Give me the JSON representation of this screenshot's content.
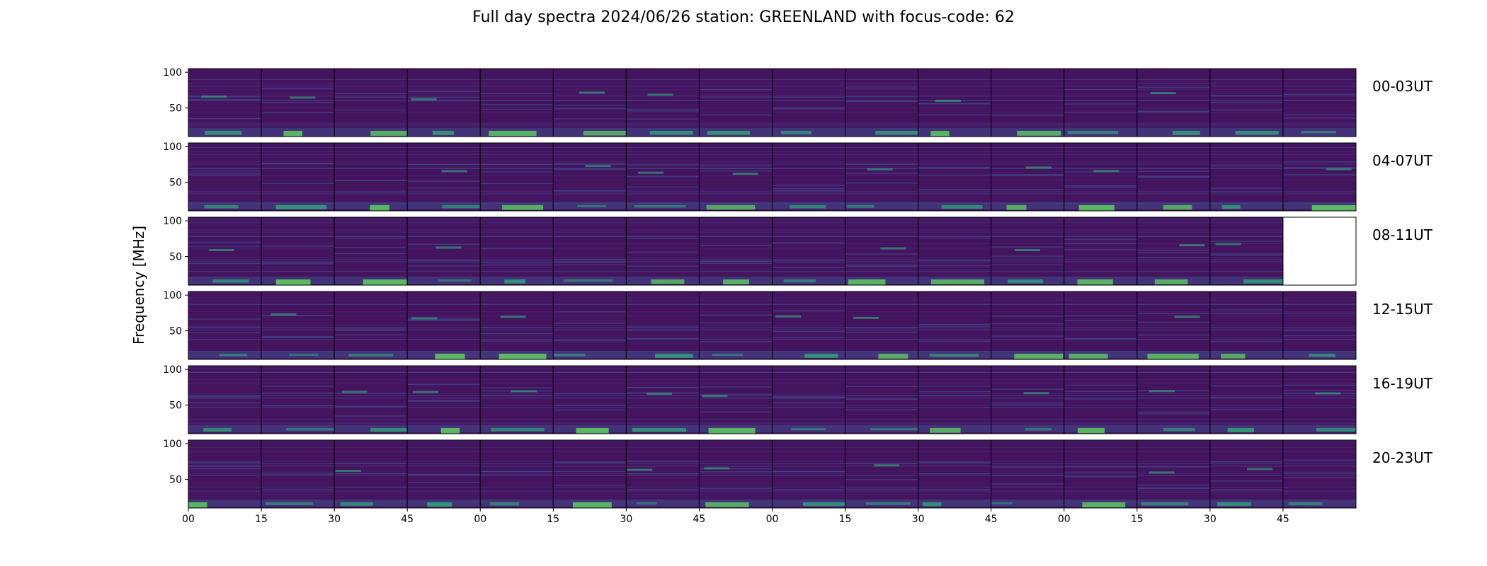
{
  "figure": {
    "title": "Full day spectra 2024/06/26 station: GREENLAND with focus-code: 62"
  },
  "chart_data": {
    "type": "heatmap",
    "title": "Full day spectra 2024/06/26 station: GREENLAND with focus-code: 62",
    "ylabel": "Frequency [MHz]",
    "xlabel": "",
    "ylim": [
      10,
      105
    ],
    "yticks": [
      50,
      100
    ],
    "xtick_labels": [
      "00",
      "15",
      "30",
      "45",
      "00",
      "15",
      "30",
      "45",
      "00",
      "15",
      "30",
      "45",
      "00",
      "15",
      "30",
      "45"
    ],
    "panels_per_row": 16,
    "panel_minutes": 15,
    "colormap": "viridis",
    "colors": {
      "background": "#45145f",
      "mid": "#3f4a8a",
      "high": "#2fb47c",
      "peak": "#5ec962"
    },
    "rows": [
      {
        "label": "00-03UT",
        "panels_with_data": 16
      },
      {
        "label": "04-07UT",
        "panels_with_data": 16
      },
      {
        "label": "08-11UT",
        "panels_with_data": 15
      },
      {
        "label": "12-15UT",
        "panels_with_data": 16
      },
      {
        "label": "16-19UT",
        "panels_with_data": 16
      },
      {
        "label": "20-23UT",
        "panels_with_data": 16
      }
    ],
    "grid": false
  }
}
